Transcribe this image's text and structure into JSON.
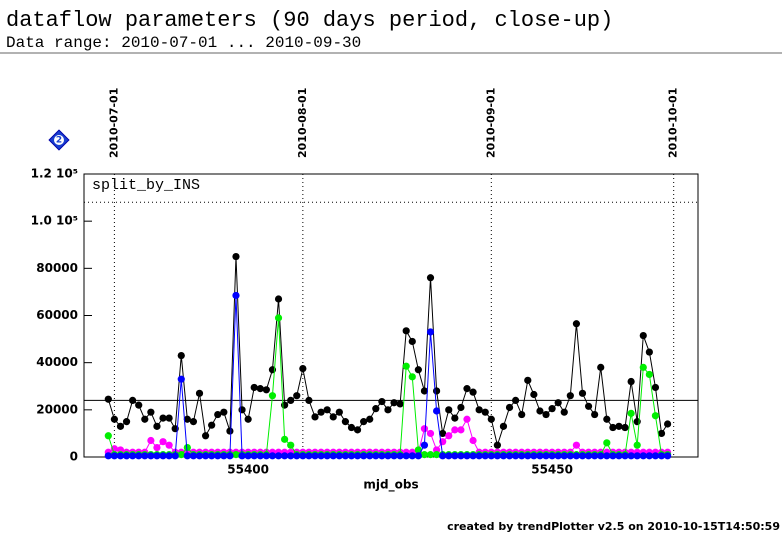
{
  "chart_data": {
    "type": "line",
    "title": "dataflow parameters (90 days period, close-up)",
    "subtitle": "Data range: 2010-07-01 ... 2010-09-30",
    "annotation": "split_by_INS",
    "badge": "2",
    "xlabel": "mjd_obs",
    "footer": "created by trendPlotter v2.5 on 2010-10-15T14:50:59",
    "xlim": [
      55373,
      55474
    ],
    "xticks": [
      55400,
      55450
    ],
    "top_xticks": [
      {
        "value": 55378,
        "label": "2010-07-01"
      },
      {
        "value": 55409,
        "label": "2010-08-01"
      },
      {
        "value": 55440,
        "label": "2010-09-01"
      },
      {
        "value": 55470,
        "label": "2010-10-01"
      }
    ],
    "ylim": [
      0,
      120000
    ],
    "yticks": [
      0,
      20000,
      40000,
      60000,
      80000,
      {
        "value": 100000,
        "label": "1.0 10⁵"
      },
      {
        "value": 120000,
        "label": "1.2 10⁵"
      }
    ],
    "reference_lines": [
      24000,
      108000
    ],
    "x": [
      55377,
      55378,
      55379,
      55380,
      55381,
      55382,
      55383,
      55384,
      55385,
      55386,
      55387,
      55388,
      55389,
      55390,
      55391,
      55392,
      55393,
      55394,
      55395,
      55396,
      55397,
      55398,
      55399,
      55400,
      55401,
      55402,
      55403,
      55404,
      55405,
      55406,
      55407,
      55408,
      55409,
      55410,
      55411,
      55412,
      55413,
      55414,
      55415,
      55416,
      55417,
      55418,
      55419,
      55420,
      55421,
      55422,
      55423,
      55424,
      55425,
      55426,
      55427,
      55428,
      55429,
      55430,
      55431,
      55432,
      55433,
      55434,
      55435,
      55436,
      55437,
      55438,
      55439,
      55440,
      55441,
      55442,
      55443,
      55444,
      55445,
      55446,
      55447,
      55448,
      55449,
      55450,
      55451,
      55452,
      55453,
      55454,
      55455,
      55456,
      55457,
      55458,
      55459,
      55460,
      55461,
      55462,
      55463,
      55464,
      55465,
      55466,
      55467,
      55468,
      55469
    ],
    "series": [
      {
        "color": "#000000",
        "values": [
          24500,
          16000,
          13000,
          15000,
          24000,
          22000,
          16000,
          19000,
          13000,
          16500,
          16500,
          12000,
          43000,
          16000,
          15000,
          27000,
          9000,
          13500,
          18000,
          19000,
          11000,
          85000,
          20000,
          16000,
          29500,
          29000,
          28500,
          37000,
          67000,
          22000,
          24000,
          26000,
          37500,
          24000,
          17000,
          19000,
          20000,
          17000,
          19000,
          15000,
          12500,
          11500,
          15000,
          16000,
          20500,
          23500,
          20000,
          23000,
          22500,
          53500,
          49000,
          37000,
          28000,
          76000,
          28000,
          10000,
          20000,
          16500,
          21000,
          29000,
          27500,
          20000,
          19000,
          16000,
          5000,
          13000,
          21000,
          24000,
          18000,
          32500,
          26500,
          19500,
          18000,
          20500,
          23000,
          19000,
          26000,
          56500,
          27000,
          21500,
          18000,
          38000,
          16000,
          12500,
          13000,
          12500,
          32000,
          15000,
          51500,
          44500,
          29500,
          10000,
          14000
        ]
      },
      {
        "color": "#ff00ff",
        "values": [
          2000,
          3500,
          3000,
          2000,
          2000,
          2000,
          2000,
          7000,
          4000,
          6500,
          5000,
          2000,
          2000,
          2000,
          2000,
          2000,
          2000,
          2000,
          2000,
          2000,
          2000,
          2000,
          2000,
          2000,
          2000,
          2000,
          2000,
          2000,
          2000,
          2000,
          2000,
          2000,
          2000,
          2000,
          2000,
          2000,
          2000,
          2000,
          2000,
          2000,
          2000,
          2000,
          2000,
          2000,
          2000,
          2000,
          2000,
          2000,
          2000,
          2000,
          2000,
          2000,
          12000,
          10000,
          3000,
          6500,
          9000,
          11500,
          11500,
          16000,
          7000,
          2000,
          2000,
          2000,
          2000,
          2000,
          2000,
          2000,
          2000,
          2000,
          2000,
          2000,
          2000,
          2000,
          2000,
          2000,
          2000,
          5000,
          2000,
          2000,
          2000,
          2000,
          2000,
          2000,
          2000,
          2000,
          2000,
          2000,
          2000,
          2000,
          2000,
          2000,
          2000
        ]
      },
      {
        "color": "#00ee00",
        "values": [
          9000,
          1000,
          1000,
          1000,
          1000,
          1000,
          1000,
          1000,
          1000,
          1000,
          1000,
          1000,
          1000,
          4000,
          1000,
          1000,
          1000,
          1000,
          1000,
          1000,
          1000,
          1000,
          1000,
          1000,
          1000,
          1000,
          1000,
          26000,
          59000,
          7500,
          5000,
          1000,
          1000,
          1000,
          1000,
          1000,
          1000,
          1000,
          1000,
          1000,
          1000,
          1000,
          1000,
          1000,
          1000,
          1000,
          1000,
          1000,
          1000,
          38500,
          34000,
          3000,
          1000,
          1000,
          1000,
          1000,
          1000,
          1000,
          1000,
          1000,
          1000,
          1000,
          1000,
          1000,
          1000,
          1000,
          1000,
          1000,
          1000,
          1000,
          1000,
          1000,
          1000,
          1000,
          1000,
          1000,
          1000,
          1000,
          1000,
          1000,
          1000,
          1000,
          6000,
          1000,
          1000,
          1000,
          18500,
          5000,
          38000,
          35000,
          17500,
          1000,
          1000
        ]
      },
      {
        "color": "#0000ff",
        "values": [
          500,
          500,
          500,
          500,
          500,
          500,
          500,
          500,
          500,
          500,
          500,
          500,
          33000,
          500,
          500,
          500,
          500,
          500,
          500,
          500,
          500,
          68500,
          500,
          500,
          500,
          500,
          500,
          500,
          500,
          500,
          500,
          500,
          500,
          500,
          500,
          500,
          500,
          500,
          500,
          500,
          500,
          500,
          500,
          500,
          500,
          500,
          500,
          500,
          500,
          500,
          500,
          500,
          5000,
          53000,
          19500,
          500,
          500,
          500,
          500,
          500,
          500,
          500,
          500,
          500,
          500,
          500,
          500,
          500,
          500,
          500,
          500,
          500,
          500,
          500,
          500,
          500,
          500,
          500,
          500,
          500,
          500,
          500,
          500,
          500,
          500,
          500,
          500,
          500,
          500,
          500,
          500,
          500,
          500
        ]
      }
    ]
  }
}
